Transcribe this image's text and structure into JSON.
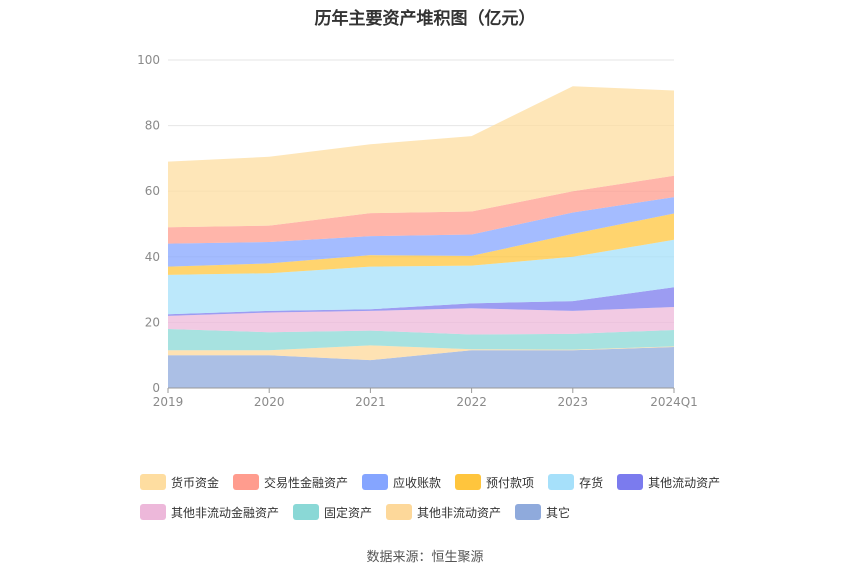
{
  "chart_data": {
    "type": "area",
    "stacked": true,
    "title": "历年主要资产堆积图（亿元）",
    "x": [
      "2019",
      "2020",
      "2021",
      "2022",
      "2023",
      "2024Q1"
    ],
    "ylim": [
      0,
      100
    ],
    "yticks": [
      0,
      20,
      40,
      60,
      80,
      100
    ],
    "grid": true,
    "legend_position": "bottom",
    "series": [
      {
        "name": "其它",
        "color": "#8FAADC",
        "values": [
          10,
          10,
          8.5,
          11.5,
          11.5,
          12.5
        ]
      },
      {
        "name": "其他非流动资产",
        "color": "#FDD89A",
        "values": [
          1.5,
          1.5,
          4.5,
          0.3,
          0.2,
          0.2
        ]
      },
      {
        "name": "固定资产",
        "color": "#8AD8D6",
        "values": [
          6.5,
          5.5,
          4.5,
          4.5,
          4.8,
          5
        ]
      },
      {
        "name": "其他非流动金融资产",
        "color": "#EDB8DA",
        "values": [
          4,
          6,
          6,
          8,
          7,
          7
        ]
      },
      {
        "name": "其他流动资产",
        "color": "#7B7BEE",
        "values": [
          0.5,
          0.5,
          0.5,
          1.5,
          3,
          6
        ]
      },
      {
        "name": "存货",
        "color": "#A6E0FA",
        "values": [
          12,
          11.5,
          13,
          11.5,
          13.5,
          14.5
        ]
      },
      {
        "name": "预付款项",
        "color": "#FFC53D",
        "values": [
          2.5,
          3,
          3.5,
          3,
          7,
          8
        ]
      },
      {
        "name": "应收账款",
        "color": "#85A5FF",
        "values": [
          7,
          6.5,
          5.8,
          6.5,
          6.5,
          5
        ]
      },
      {
        "name": "交易性金融资产",
        "color": "#FF9C8E",
        "values": [
          5,
          5,
          7,
          7,
          6.5,
          6.5
        ]
      },
      {
        "name": "货币资金",
        "color": "#FEDDA0",
        "values": [
          20,
          21,
          21,
          23,
          32,
          26
        ]
      }
    ],
    "legend_order": [
      "货币资金",
      "交易性金融资产",
      "应收账款",
      "预付款项",
      "存货",
      "其他流动资产",
      "其他非流动金融资产",
      "固定资产",
      "其他非流动资产",
      "其它"
    ]
  },
  "source_label": "数据来源：恒生聚源"
}
